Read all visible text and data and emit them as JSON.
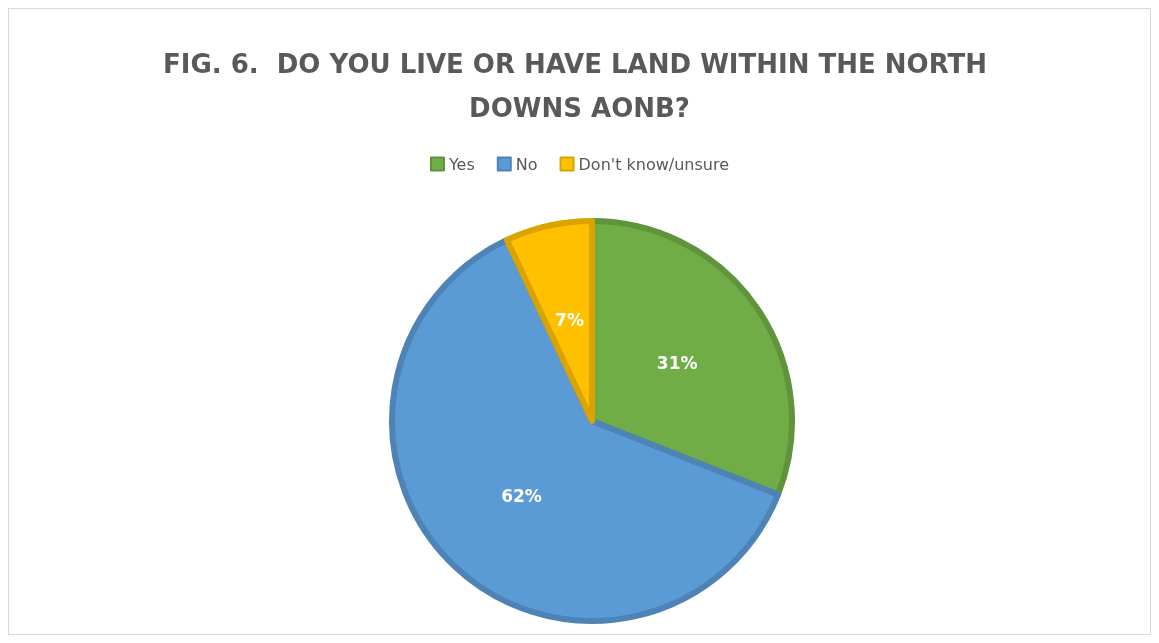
{
  "chart_data": {
    "type": "pie",
    "title": "FIG. 6.  DO YOU LIVE OR HAVE LAND WITHIN THE NORTH DOWNS AONB?",
    "categories": [
      "Yes",
      "No",
      "Don't know/unsure"
    ],
    "values": [
      31,
      62,
      7
    ],
    "colors": [
      "#70ad47",
      "#5b9bd5",
      "#ffc000"
    ],
    "value_labels": [
      "31%",
      "62%",
      "7%"
    ],
    "legend": "top"
  }
}
